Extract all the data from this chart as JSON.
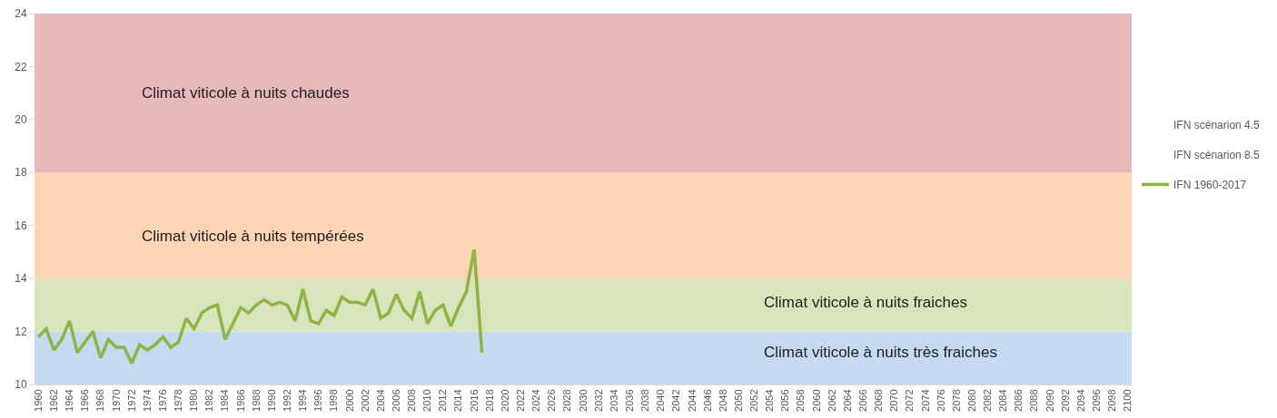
{
  "chart_data": {
    "type": "line",
    "categories": [
      "1960",
      null,
      "1962",
      null,
      "1964",
      null,
      "1966",
      null,
      "1968",
      null,
      "1970",
      null,
      "1972",
      null,
      "1974",
      null,
      "1976",
      null,
      "1978",
      null,
      "1980",
      null,
      "1982",
      null,
      "1984",
      null,
      "1986",
      null,
      "1988",
      null,
      "1990",
      null,
      "1992",
      null,
      "1994",
      null,
      "1996",
      null,
      "1998",
      null,
      "2000",
      null,
      "2002",
      null,
      "2004",
      null,
      "2006",
      null,
      "2008",
      null,
      "2010",
      null,
      "2012",
      null,
      "2014",
      null,
      "2016",
      null,
      "2018",
      null,
      "2020",
      null,
      "2022",
      null,
      "2024",
      null,
      "2026",
      null,
      "2028",
      null,
      "2030",
      null,
      "2032",
      null,
      "2034",
      null,
      "2036",
      null,
      "2038",
      null,
      "2040",
      null,
      "2042",
      null,
      "2044",
      null,
      "2046",
      null,
      "2048",
      null,
      "2050",
      null,
      "2052",
      null,
      "2054",
      null,
      "2056",
      null,
      "2058",
      null,
      "2060",
      null,
      "2062",
      null,
      "2064",
      null,
      "2066",
      null,
      "2068",
      null,
      "2070",
      null,
      "2072",
      null,
      "2074",
      null,
      "2076",
      null,
      "2078",
      null,
      "2080",
      null,
      "2082",
      null,
      "2084",
      null,
      "2086",
      null,
      "2088",
      null,
      "2090",
      null,
      "2092",
      null,
      "2094",
      null,
      "2096",
      null,
      "2098",
      null,
      "2100"
    ],
    "series": [
      {
        "name": "IFN scénarion 4.5",
        "values": [
          null,
          null,
          null,
          null,
          null,
          null,
          null,
          null,
          null,
          null,
          null,
          null,
          null,
          null,
          null,
          null,
          null,
          null,
          null,
          null,
          null,
          null,
          null,
          null,
          null,
          null,
          null,
          null,
          null,
          null,
          null,
          null,
          null,
          null,
          null,
          null,
          null,
          null,
          null,
          null,
          null,
          null,
          null,
          null,
          null,
          null,
          null,
          null,
          null,
          null,
          null,
          null,
          null,
          null,
          null,
          null,
          null,
          null,
          null,
          null,
          null,
          null,
          null,
          null,
          null,
          null,
          null,
          null,
          null,
          null,
          null,
          null,
          null,
          null,
          null,
          null,
          null,
          null,
          null,
          null,
          null,
          null,
          null,
          null,
          null,
          null,
          null,
          null,
          null,
          null,
          null,
          null,
          null,
          null,
          null,
          null,
          null,
          null,
          null,
          null,
          null,
          null,
          null,
          null,
          null,
          null,
          null,
          null,
          null,
          null,
          null,
          null,
          null,
          null,
          null,
          null,
          null,
          null,
          null,
          null,
          null,
          null,
          null,
          null,
          null,
          null,
          null,
          null,
          null,
          null,
          null,
          null,
          null,
          null,
          null,
          null,
          null,
          null,
          null,
          null,
          null
        ]
      },
      {
        "name": "IFN scénarion 8.5",
        "values": [
          null,
          null,
          null,
          null,
          null,
          null,
          null,
          null,
          null,
          null,
          null,
          null,
          null,
          null,
          null,
          null,
          null,
          null,
          null,
          null,
          null,
          null,
          null,
          null,
          null,
          null,
          null,
          null,
          null,
          null,
          null,
          null,
          null,
          null,
          null,
          null,
          null,
          null,
          null,
          null,
          null,
          null,
          null,
          null,
          null,
          null,
          null,
          null,
          null,
          null,
          null,
          null,
          null,
          null,
          null,
          null,
          null,
          null,
          null,
          null,
          null,
          null,
          null,
          null,
          null,
          null,
          null,
          null,
          null,
          null,
          null,
          null,
          null,
          null,
          null,
          null,
          null,
          null,
          null,
          null,
          null,
          null,
          null,
          null,
          null,
          null,
          null,
          null,
          null,
          null,
          null,
          null,
          null,
          null,
          null,
          null,
          null,
          null,
          null,
          null,
          null,
          null,
          null,
          null,
          null,
          null,
          null,
          null,
          null,
          null,
          null,
          null,
          null,
          null,
          null,
          null,
          null,
          null,
          null,
          null,
          null,
          null,
          null,
          null,
          null,
          null,
          null,
          null,
          null,
          null,
          null,
          null,
          null,
          null,
          null,
          null,
          null,
          null,
          null,
          null,
          null
        ]
      },
      {
        "name": "IFN 1960-2017",
        "color": "#8db444",
        "values": [
          11.8,
          12.1,
          11.3,
          11.7,
          12.4,
          11.2,
          11.6,
          12.0,
          11.0,
          11.7,
          11.4,
          11.4,
          10.8,
          11.5,
          11.3,
          11.5,
          11.8,
          11.4,
          11.6,
          12.5,
          12.1,
          12.7,
          12.9,
          13.0,
          11.7,
          12.3,
          12.9,
          12.7,
          13.0,
          13.2,
          13.0,
          13.1,
          13.0,
          12.4,
          13.6,
          12.4,
          12.3,
          12.8,
          12.6,
          13.3,
          13.1,
          13.1,
          13.0,
          13.6,
          12.5,
          12.7,
          13.4,
          12.8,
          12.5,
          13.5,
          12.3,
          12.8,
          13.0,
          12.2,
          12.9,
          13.5,
          15.1,
          11.2,
          null,
          null,
          null,
          null,
          null,
          null,
          null,
          null,
          null,
          null,
          null,
          null,
          null,
          null,
          null,
          null,
          null,
          null,
          null,
          null,
          null,
          null,
          null,
          null,
          null,
          null,
          null,
          null,
          null,
          null,
          null,
          null,
          null,
          null,
          null,
          null,
          null,
          null,
          null,
          null,
          null,
          null,
          null,
          null,
          null,
          null,
          null,
          null,
          null,
          null,
          null,
          null,
          null,
          null,
          null,
          null,
          null,
          null,
          null,
          null,
          null,
          null,
          null,
          null,
          null,
          null,
          null,
          null,
          null,
          null,
          null,
          null,
          null,
          null,
          null,
          null,
          null,
          null,
          null,
          null,
          null,
          null,
          null
        ]
      }
    ],
    "ylim": [
      10,
      24
    ],
    "yticks": [
      10,
      12,
      14,
      16,
      18,
      20,
      22,
      24
    ],
    "bands": [
      {
        "axis": "y",
        "from": 10,
        "to": 12,
        "label": "Climat viticole à nuits très fraiches",
        "color": "#c5d9f1"
      },
      {
        "axis": "y",
        "from": 12,
        "to": 14,
        "label": "Climat viticole à nuits fraiches",
        "color": "#d8e4bc"
      },
      {
        "axis": "y",
        "from": 14,
        "to": 18,
        "label": "Climat viticole à nuits tempérées",
        "color": "#fcd5b4"
      },
      {
        "axis": "y",
        "from": 18,
        "to": 24,
        "label": "Climat viticole à nuits chaudes",
        "color": "#e6b8b7"
      }
    ],
    "grid": false,
    "legend": "right",
    "marker": "none",
    "line_style": "solid"
  }
}
